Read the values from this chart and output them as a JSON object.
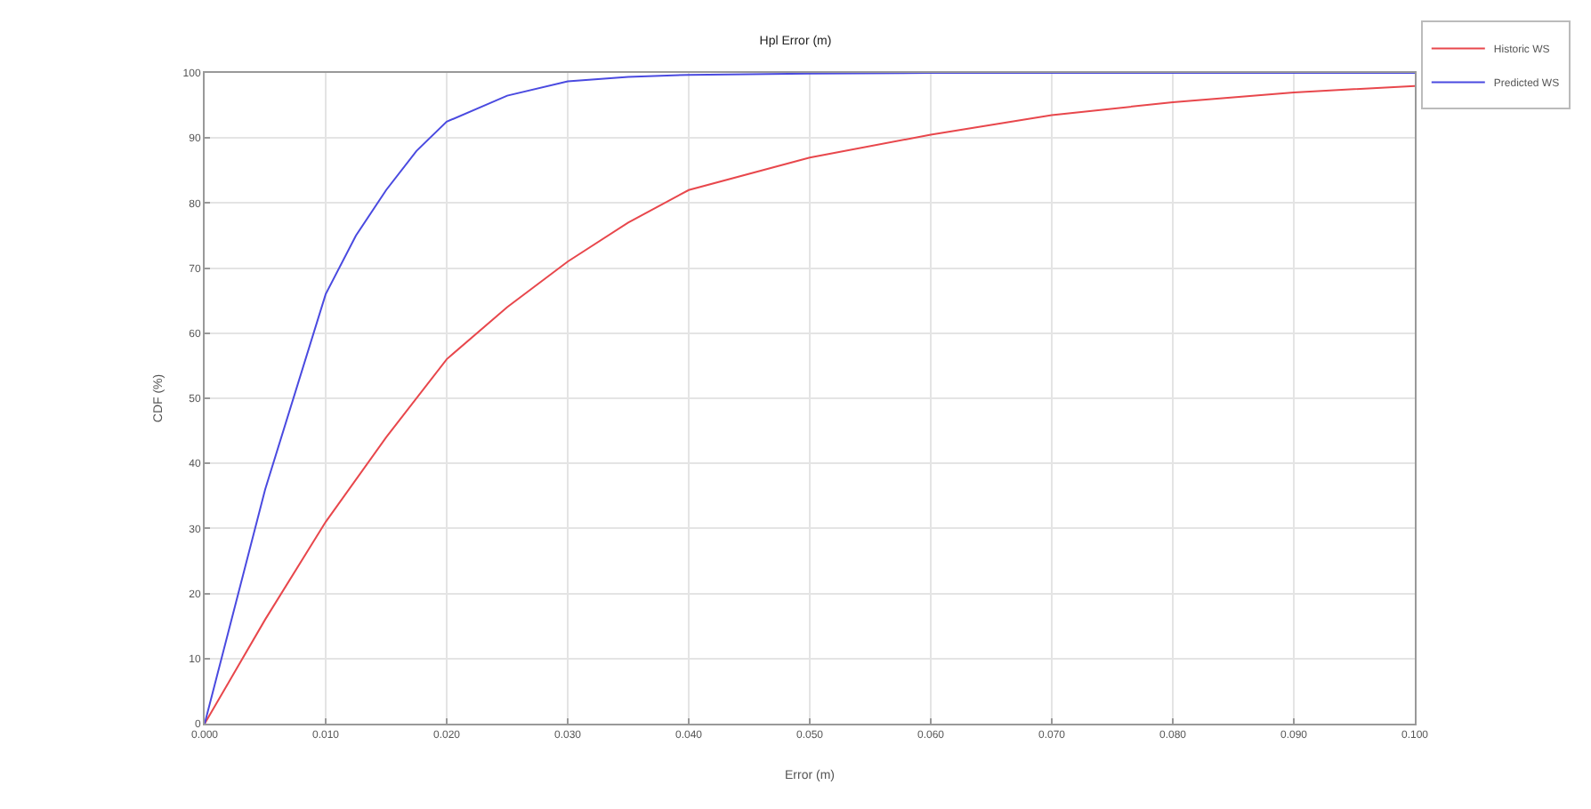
{
  "chart_data": {
    "type": "line",
    "title": "Hpl Error (m)",
    "xlabel": "Error (m)",
    "ylabel": "CDF (%)",
    "xlim": [
      0,
      0.1
    ],
    "ylim": [
      0,
      100
    ],
    "xticks": [
      {
        "value": 0,
        "label": "0.000"
      },
      {
        "value": 0.01,
        "label": "0.010"
      },
      {
        "value": 0.02,
        "label": "0.020"
      },
      {
        "value": 0.03,
        "label": "0.030"
      },
      {
        "value": 0.04,
        "label": "0.040"
      },
      {
        "value": 0.05,
        "label": "0.050"
      },
      {
        "value": 0.06,
        "label": "0.060"
      },
      {
        "value": 0.07,
        "label": "0.070"
      },
      {
        "value": 0.08,
        "label": "0.080"
      },
      {
        "value": 0.09,
        "label": "0.090"
      },
      {
        "value": 0.1,
        "label": "0.100"
      }
    ],
    "yticks": [
      0,
      10,
      20,
      30,
      40,
      50,
      60,
      70,
      80,
      90,
      100
    ],
    "grid": true,
    "legend": "top right",
    "series": [
      {
        "name": "Historic WS",
        "color": "#e8474c",
        "x": [
          0,
          0.005,
          0.01,
          0.015,
          0.02,
          0.025,
          0.03,
          0.035,
          0.04,
          0.05,
          0.06,
          0.07,
          0.08,
          0.09,
          0.1
        ],
        "values": [
          0,
          16,
          31,
          44,
          56,
          64,
          71,
          77,
          82,
          87,
          90.5,
          93.5,
          95.5,
          97,
          98
        ]
      },
      {
        "name": "Predicted WS",
        "color": "#4a4ae0",
        "x": [
          0,
          0.005,
          0.01,
          0.0125,
          0.015,
          0.0175,
          0.02,
          0.025,
          0.03,
          0.035,
          0.04,
          0.05,
          0.06,
          0.08,
          0.1
        ],
        "values": [
          0,
          36,
          66,
          75,
          82,
          88,
          92.5,
          96.5,
          98.7,
          99.4,
          99.7,
          99.9,
          100,
          100,
          100
        ]
      }
    ]
  }
}
